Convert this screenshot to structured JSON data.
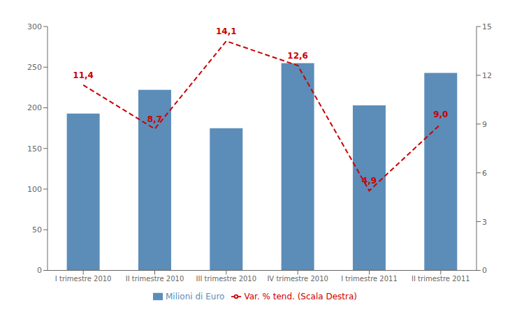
{
  "chart_data": {
    "type": "bar",
    "categories": [
      "I trimestre 2010",
      "II trimestre 2010",
      "III trimestre 2010",
      "IV trimestre 2010",
      "I trimestre 2011",
      "II trimestre 2011"
    ],
    "series": [
      {
        "name": "Milioni di Euro",
        "type": "bar",
        "color": "#5b8db8",
        "values": [
          193,
          222,
          175,
          255,
          203,
          243
        ]
      },
      {
        "name": "Var. % tend. (Scala Destra)",
        "type": "line",
        "color": "#cc0000",
        "line_style": "dashed",
        "axis": "y2",
        "values": [
          11.4,
          8.7,
          14.1,
          12.6,
          4.9,
          9.0
        ],
        "value_labels": [
          "11,4",
          "8,7",
          "14,1",
          "12,6",
          "4,9",
          "9,0"
        ],
        "data_labels": true
      }
    ],
    "ylim": [
      0,
      300
    ],
    "yticks": [
      0,
      50,
      100,
      150,
      200,
      250,
      300
    ],
    "y2lim": [
      0,
      15
    ],
    "y2ticks": [
      0,
      3,
      6,
      9,
      12,
      15
    ],
    "grid": false,
    "legend": "bottom"
  }
}
